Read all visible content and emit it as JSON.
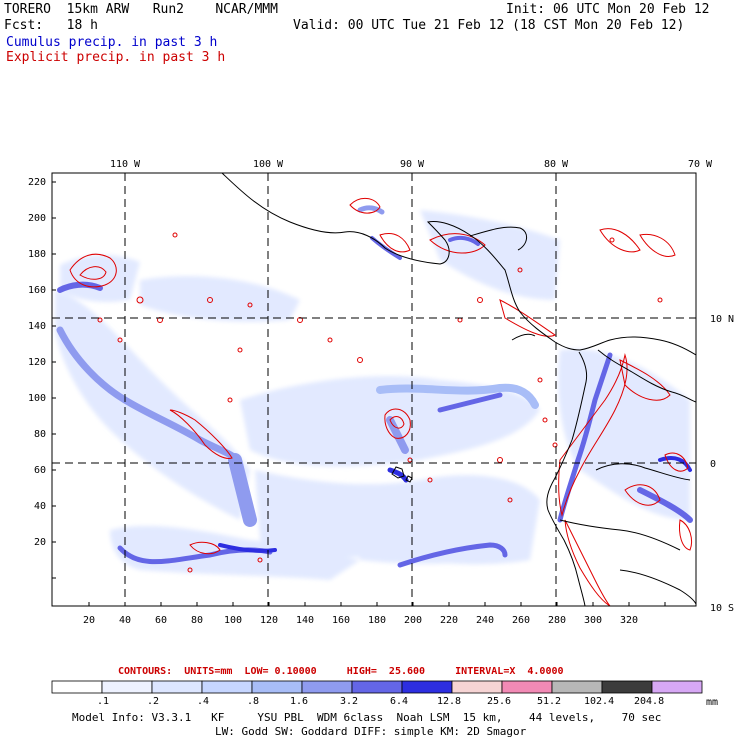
{
  "header": {
    "model": "TORERO  15km ARW   Run2    NCAR/MMM",
    "init": "Init: 06 UTC Mon 20 Feb 12",
    "fcst": "Fcst:   18 h",
    "valid": "Valid: 00 UTC Tue 21 Feb 12 (18 CST Mon 20 Feb 12)",
    "cumulus": "Cumulus precip. in past 3 h",
    "explicit": "Explicit precip. in past 3 h"
  },
  "axes": {
    "top_lon": [
      "110 W",
      "100 W",
      "90 W",
      "80 W",
      "70 W"
    ],
    "right_lat": [
      "10 N",
      "0",
      "10 S"
    ],
    "left_y": [
      "220",
      "200",
      "180",
      "160",
      "140",
      "120",
      "100",
      "80",
      "60",
      "40",
      "20"
    ],
    "bottom_x": [
      "20",
      "40",
      "60",
      "80",
      "100",
      "120",
      "140",
      "160",
      "180",
      "200",
      "220",
      "240",
      "260",
      "280",
      "300",
      "320"
    ]
  },
  "contour_info": {
    "label": "CONTOURS:  UNITS=mm  LOW= 0.10000     HIGH=  25.600     INTERVAL=X  4.0000"
  },
  "colorbar": {
    "unit": "mm",
    "labels": [
      ".1",
      ".2",
      ".4",
      ".8",
      "1.6",
      "3.2",
      "6.4",
      "12.8",
      "25.6",
      "51.2",
      "102.4",
      "204.8"
    ],
    "colors": [
      "#ffffff",
      "#eef2ff",
      "#dde6ff",
      "#c6d6ff",
      "#a8bdf7",
      "#8f9bef",
      "#6466e6",
      "#2d2ee0",
      "#f6d4d4",
      "#f28ab5",
      "#b7b7b7",
      "#3c3c3c",
      "#d7a8f5"
    ]
  },
  "footer": {
    "line1": "Model Info: V3.3.1   KF     YSU PBL  WDM 6class  Noah LSM  15 km,    44 levels,    70 sec",
    "line2": "LW: Godd SW: Goddard DIFF: simple KM: 2D Smagor"
  }
}
